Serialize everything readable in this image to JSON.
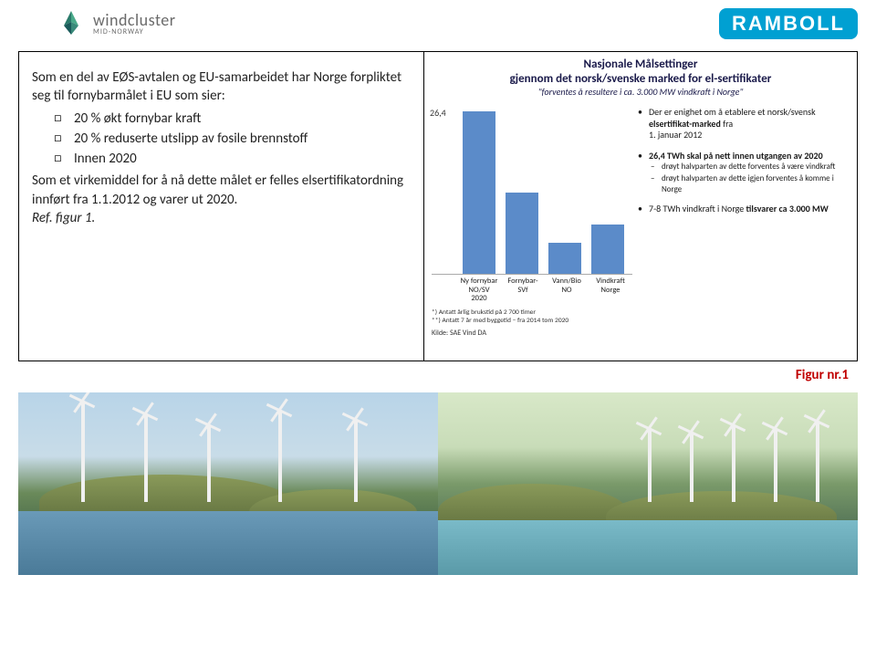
{
  "header": {
    "left_logo": {
      "main": "windcluster",
      "sub": "MID-NORWAY"
    },
    "right_logo": "RAMBOLL"
  },
  "left_panel": {
    "intro": "Som en del av EØS-avtalen og EU-samarbeidet har Norge forpliktet seg til fornybarmålet i EU som sier:",
    "bullets": [
      "20 % økt fornybar kraft",
      "20 % reduserte utslipp av fosile brennstoff",
      "Innen 2020"
    ],
    "outro_1": "Som et virkemiddel for å nå dette målet er felles elsertifikatordning innført fra 1.1.2012 og varer ut 2020.",
    "outro_2": "Ref. figur 1."
  },
  "chart": {
    "title_line1": "Nasjonale Målsettinger",
    "title_line2": "gjennom det norsk/svenske marked for el-sertifikater",
    "subtitle": "\"forventes å resultere i ca. 3.000 MW vindkraft i Norge\"",
    "y_value_label": "26,4",
    "categories": [
      "Ny fornybar\nNO/SV 2020",
      "Fornybar-\nSVf",
      "Vann/Bio NO",
      "Vindkraft\nNorge"
    ],
    "values": [
      26.4,
      13.2,
      5.0,
      8.0
    ],
    "y_max": 28,
    "bar_color": "#5b8bc9",
    "note1": "*) Antatt årlig brukstid på 2 700 timer",
    "note2": "**) Antatt 7 år med byggetid – fra 2014 tom 2020",
    "source": "Kilde: SAE Vind DA"
  },
  "side_bullets": {
    "b1_line1": "Der er enighet om å etablere et norsk/svensk ",
    "b1_strong": "elsertifikat-marked",
    "b1_line2": " fra",
    "b1_date": "1. januar 2012",
    "b2_strong": "26,4 TWh skal på nett innen utgangen av 2020",
    "b2_sub1": "drøyt halvparten av dette forventes å være vindkraft",
    "b2_sub2": "drøyt halvparten av dette igjen forventes å komme i Norge",
    "b3_line": "7-8 TWh vindkraft i Norge ",
    "b3_strong": "tilsvarer ca 3.000 MW"
  },
  "figure_label": "Figur nr.1"
}
